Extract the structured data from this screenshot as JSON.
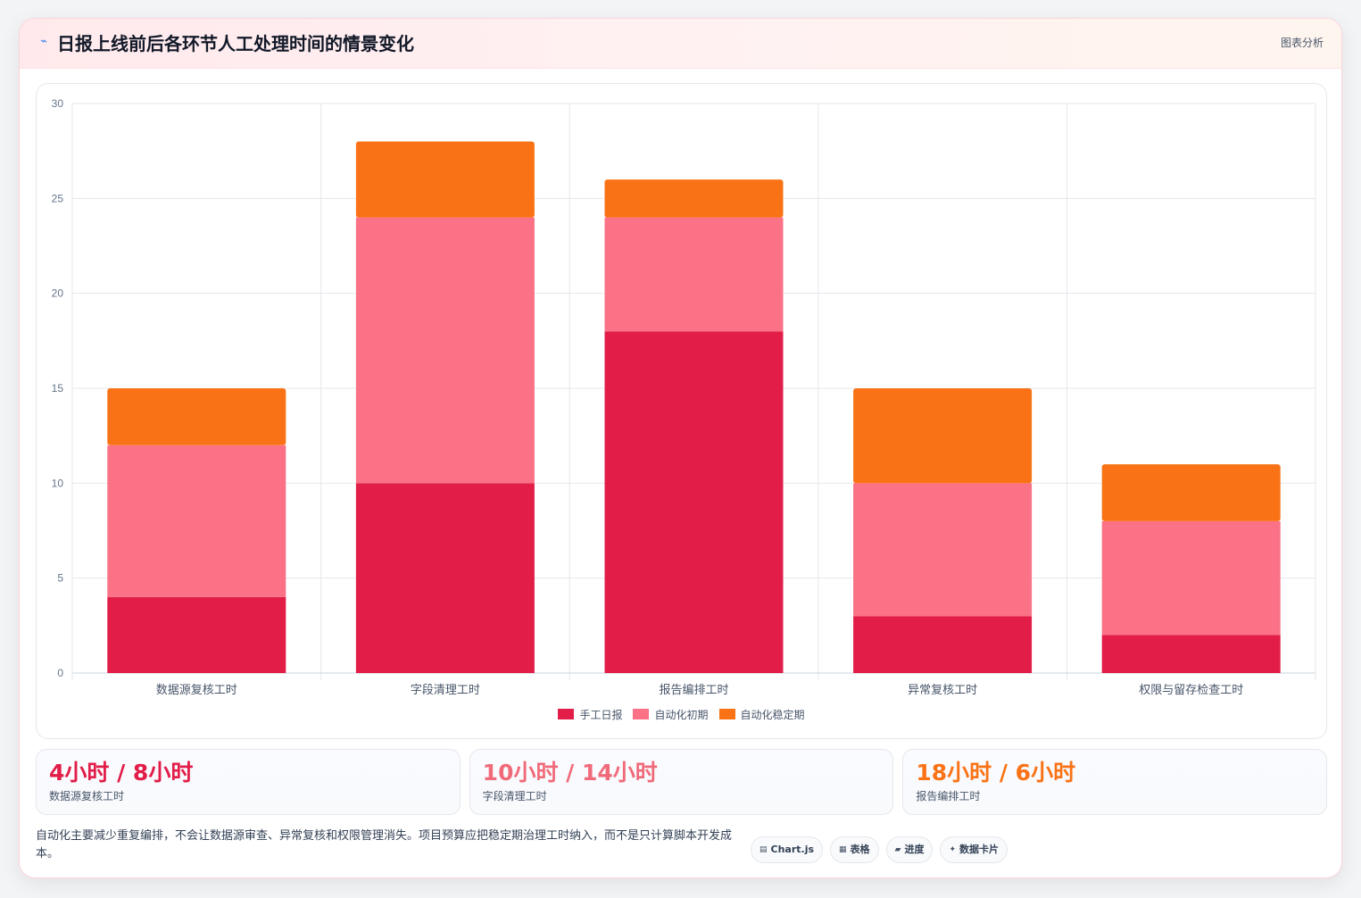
{
  "header": {
    "title": "日报上线前后各环节人工处理时间的情景变化",
    "tag": "图表分析",
    "icon": "trend-icon"
  },
  "chart_data": {
    "type": "bar",
    "stacked": true,
    "categories": [
      "数据源复核工时",
      "字段清理工时",
      "报告编排工时",
      "异常复核工时",
      "权限与留存检查工时"
    ],
    "series": [
      {
        "name": "手工日报",
        "values": [
          4,
          10,
          18,
          3,
          2
        ],
        "color": "#e11d48"
      },
      {
        "name": "自动化初期",
        "values": [
          8,
          14,
          6,
          7,
          6
        ],
        "color": "#fb7185"
      },
      {
        "name": "自动化稳定期",
        "values": [
          3,
          4,
          2,
          5,
          3
        ],
        "color": "#f97316"
      }
    ],
    "ylim": [
      0,
      30
    ],
    "yticks": [
      0,
      5,
      10,
      15,
      20,
      25,
      30
    ],
    "grid": true,
    "legend": "bottom"
  },
  "stats": [
    {
      "value": "4小时 / 8小时",
      "label": "数据源复核工时",
      "color": "#e11d48"
    },
    {
      "value": "10小时 / 14小时",
      "label": "字段清理工时",
      "color": "#f06b7a"
    },
    {
      "value": "18小时 / 6小时",
      "label": "报告编排工时",
      "color": "#f97316"
    }
  ],
  "footer": {
    "note": "自动化主要减少重复编排，不会让数据源审查、异常复核和权限管理消失。项目预算应把稳定期治理工时纳入，而不是只计算脚本开发成本。"
  },
  "pills": [
    {
      "icon": "▤",
      "label": "Chart.js"
    },
    {
      "icon": "▦",
      "label": "表格"
    },
    {
      "icon": "▰",
      "label": "进度"
    },
    {
      "icon": "✦",
      "label": "数据卡片"
    }
  ]
}
